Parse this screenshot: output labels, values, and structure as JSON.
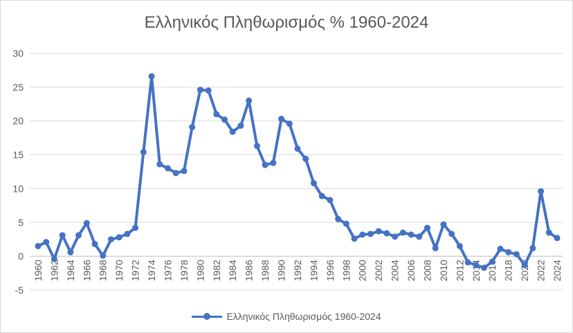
{
  "chart_data": {
    "type": "line",
    "title": "Ελληνικός Πληθωρισμός % 1960-2024",
    "xlabel": "",
    "ylabel": "",
    "ylim": [
      -5,
      30
    ],
    "yticks": [
      -5,
      0,
      5,
      10,
      15,
      20,
      25,
      30
    ],
    "x": [
      1960,
      1961,
      1962,
      1963,
      1964,
      1965,
      1966,
      1967,
      1968,
      1969,
      1970,
      1971,
      1972,
      1973,
      1974,
      1975,
      1976,
      1977,
      1978,
      1979,
      1980,
      1981,
      1982,
      1983,
      1984,
      1985,
      1986,
      1987,
      1988,
      1989,
      1990,
      1991,
      1992,
      1993,
      1994,
      1995,
      1996,
      1997,
      1998,
      1999,
      2000,
      2001,
      2002,
      2003,
      2004,
      2005,
      2006,
      2007,
      2008,
      2009,
      2010,
      2011,
      2012,
      2013,
      2014,
      2015,
      2016,
      2017,
      2018,
      2019,
      2020,
      2021,
      2022,
      2023,
      2024
    ],
    "xtick_labels": [
      "1960",
      "1962",
      "1964",
      "1966",
      "1968",
      "1970",
      "1972",
      "1974",
      "1976",
      "1978",
      "1980",
      "1982",
      "1984",
      "1986",
      "1988",
      "1990",
      "1992",
      "1994",
      "1996",
      "1998",
      "2000",
      "2002",
      "2004",
      "2006",
      "2008",
      "2010",
      "2012",
      "2014",
      "2016",
      "2018",
      "2020",
      "2022",
      "2024"
    ],
    "series": [
      {
        "name": "Ελληνικός Πληθωρισμός 1960-2024",
        "color": "#4472c4",
        "values": [
          1.5,
          2.1,
          -0.4,
          3.1,
          0.6,
          3.1,
          4.9,
          1.8,
          0.1,
          2.5,
          2.8,
          3.3,
          4.2,
          15.4,
          26.6,
          13.6,
          13.0,
          12.3,
          12.6,
          19.1,
          24.6,
          24.5,
          21.0,
          20.2,
          18.4,
          19.3,
          23.0,
          16.3,
          13.5,
          13.8,
          20.3,
          19.6,
          15.9,
          14.4,
          10.8,
          8.9,
          8.3,
          5.5,
          4.8,
          2.6,
          3.2,
          3.3,
          3.7,
          3.4,
          2.9,
          3.5,
          3.2,
          2.9,
          4.2,
          1.2,
          4.7,
          3.3,
          1.5,
          -0.9,
          -1.3,
          -1.7,
          -0.8,
          1.1,
          0.6,
          0.3,
          -1.3,
          1.2,
          9.6,
          3.5,
          2.7
        ]
      }
    ],
    "grid": true,
    "legend_position": "bottom"
  }
}
